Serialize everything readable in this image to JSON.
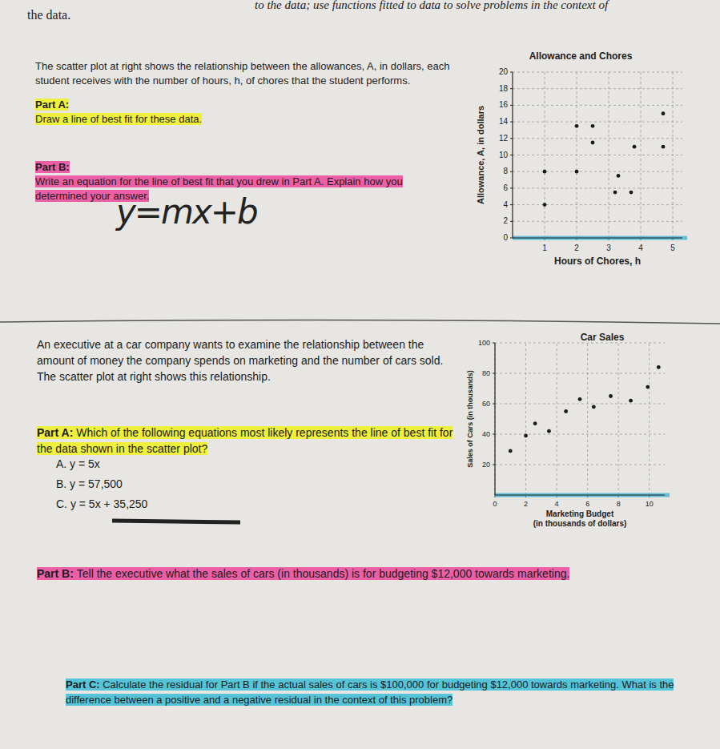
{
  "header": {
    "left": "the data.",
    "right": "to the data; use functions fitted to data to solve problems in the context of"
  },
  "problems": [
    {
      "intro": "The scatter plot at right  shows the relationship between the allowances, A, in dollars, each student receives with the number of hours, h, of chores that the student performs.",
      "parts": [
        {
          "label": "Part A:",
          "text": "Draw a line of best fit for these data."
        },
        {
          "label": "Part B:",
          "text": "Write an equation for the line of best fit that you drew in Part A. Explain how you determined your answer."
        }
      ],
      "handwriting": "y=mx+b"
    },
    {
      "intro": "An executive at a car company wants to examine the relationship between the amount of money the company spends on marketing and the number of cars sold. The scatter plot at right shows this relationship.",
      "parts": [
        {
          "label": "Part A:",
          "text": "Which of the following equations most likely represents the line of best fit for the data shown in the scatter plot?",
          "choices": [
            "A. y = 5x",
            "B. y = 57,500",
            "C. y = 5x + 35,250"
          ]
        },
        {
          "label": "Part B:",
          "text": "Tell the executive what the sales of cars (in thousands) is for budgeting $12,000 towards marketing."
        },
        {
          "label": "Part C:",
          "text": "Calculate the residual for Part B if the actual sales of cars is $100,000 for budgeting $12,000 towards marketing. What is the difference between a positive and a negative residual in the context of this problem?"
        }
      ]
    }
  ],
  "chart_data": [
    {
      "type": "scatter",
      "title": "Allowance and Chores",
      "x_label": [
        "Hours of Chores, h"
      ],
      "y_label": "Allowance, A, in dollars",
      "x": [
        2,
        2.5,
        4.7,
        2.5,
        3.8,
        4.7,
        1,
        2,
        3.3,
        3.2,
        3.7,
        1
      ],
      "values": [
        13.5,
        13.5,
        15,
        11.5,
        11,
        11,
        8,
        8,
        7.5,
        5.5,
        5.5,
        4
      ],
      "color": "#1a1a1a",
      "xlim": [
        0,
        5.3
      ],
      "ylim": [
        0,
        20
      ],
      "xticks": [
        1,
        2,
        3,
        4,
        5
      ],
      "yticks": [
        0,
        2,
        4,
        6,
        8,
        10,
        12,
        14,
        16,
        18,
        20
      ],
      "grid": true
    },
    {
      "type": "scatter",
      "title": "Car Sales",
      "x_label": [
        "Marketing Budget",
        "(in thousands of dollars)"
      ],
      "y_label": "Sales of Cars (in thousands)",
      "x": [
        1,
        2,
        2.6,
        3.5,
        4.6,
        5.5,
        6.4,
        7.5,
        8.8,
        9.9,
        10.6
      ],
      "values": [
        29,
        39,
        47,
        42,
        55,
        63,
        58,
        65,
        62,
        71,
        84
      ],
      "color": "#1a1a1a",
      "xlim": [
        0,
        11
      ],
      "ylim": [
        0,
        100
      ],
      "xticks": [
        0,
        2,
        4,
        6,
        8,
        10
      ],
      "yticks": [
        20,
        40,
        60,
        80,
        100
      ],
      "grid": true
    }
  ]
}
